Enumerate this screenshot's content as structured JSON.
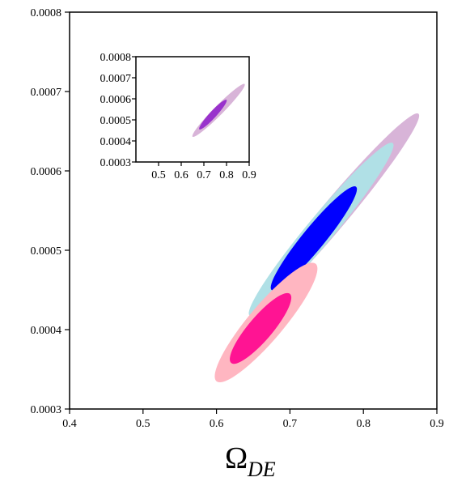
{
  "chart_data": [
    {
      "type": "scatter",
      "title": "",
      "xlabel_main": "Ω",
      "xlabel_sub": "DE",
      "ylabel": "",
      "xlim": [
        0.4,
        0.9
      ],
      "ylim": [
        0.0003,
        0.0008
      ],
      "x_ticks": [
        "0.4",
        "0.5",
        "0.6",
        "0.7",
        "0.8",
        "0.9"
      ],
      "y_ticks": [
        "0.0003",
        "0.0004",
        "0.0005",
        "0.0006",
        "0.0007",
        "0.0008"
      ],
      "grid": false,
      "contours": [
        {
          "x1": 0.645,
          "y1": 0.000418,
          "x2": 0.875,
          "y2": 0.000672,
          "halfwidth": 1.75e-05,
          "color": "#d8b4d8"
        },
        {
          "x1": 0.645,
          "y1": 0.000418,
          "x2": 0.84,
          "y2": 0.000635,
          "halfwidth": 1.7e-05,
          "color": "#b0e0e6"
        },
        {
          "x1": 0.675,
          "y1": 0.00045,
          "x2": 0.79,
          "y2": 0.00058,
          "halfwidth": 1.4e-05,
          "color": "#0000ff"
        },
        {
          "x1": 0.6,
          "y1": 0.000335,
          "x2": 0.735,
          "y2": 0.000483,
          "halfwidth": 2.2e-05,
          "color": "#ffb6c1"
        },
        {
          "x1": 0.62,
          "y1": 0.000358,
          "x2": 0.7,
          "y2": 0.000445,
          "halfwidth": 1.5e-05,
          "color": "#ff1493"
        }
      ]
    },
    {
      "type": "scatter",
      "title": "",
      "xlim": [
        0.4,
        0.9
      ],
      "ylim": [
        0.0003,
        0.0008
      ],
      "x_ticks": [
        "0.5",
        "0.6",
        "0.7",
        "0.8",
        "0.9"
      ],
      "y_ticks": [
        "0.0003",
        "0.0004",
        "0.0005",
        "0.0006",
        "0.0007",
        "0.0008"
      ],
      "grid": false,
      "contours": [
        {
          "x1": 0.65,
          "y1": 0.00042,
          "x2": 0.88,
          "y2": 0.00067,
          "halfwidth": 2.2e-05,
          "color": "#d8b4d8"
        },
        {
          "x1": 0.68,
          "y1": 0.000455,
          "x2": 0.8,
          "y2": 0.000595,
          "halfwidth": 1.6e-05,
          "color": "#9932cc"
        }
      ]
    }
  ]
}
